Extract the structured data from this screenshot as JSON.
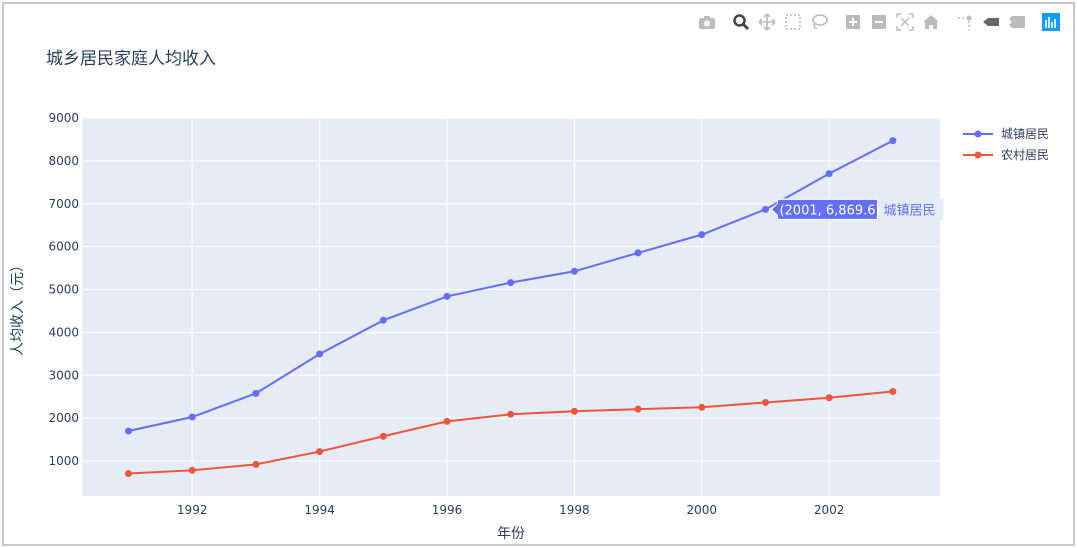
{
  "title": "城乡居民家庭人均收入",
  "modebar": [
    "camera-icon",
    "zoom-icon",
    "pan-icon",
    "box-select-icon",
    "lasso-select-icon",
    "zoom-in-icon",
    "zoom-out-icon",
    "autoscale-icon",
    "reset-axes-icon",
    "spike-lines-icon",
    "hover-closest-icon",
    "hover-compare-icon",
    "plotly-logo-icon"
  ],
  "chart_data": {
    "type": "line",
    "title": "城乡居民家庭人均收入",
    "xlabel": "年份",
    "ylabel": "人均收入（元）",
    "x": [
      1991,
      1992,
      1993,
      1994,
      1995,
      1996,
      1997,
      1998,
      1999,
      2000,
      2001,
      2002,
      2003
    ],
    "xlim": [
      1990.27,
      2003.74
    ],
    "ylim": [
      185,
      9000
    ],
    "xticks": [
      1992,
      1994,
      1996,
      1998,
      2000,
      2002
    ],
    "yticks": [
      1000,
      2000,
      3000,
      4000,
      5000,
      6000,
      7000,
      8000,
      9000
    ],
    "grid": true,
    "legend_position": "top-right",
    "series": [
      {
        "name": "城镇居民",
        "color": "#636efa",
        "values": [
          1700.6,
          2026.6,
          2577.4,
          3496.2,
          4283,
          4838.9,
          5160.3,
          5425.1,
          5854,
          6280,
          6869.6,
          7702.8,
          8472.2
        ]
      },
      {
        "name": "农村居民",
        "color": "#ef553b",
        "values": [
          708.6,
          784,
          921.6,
          1221,
          1577.7,
          1926.1,
          2090.1,
          2162,
          2210.3,
          2253.4,
          2366.4,
          2475.6,
          2622.2
        ]
      }
    ],
    "hover": {
      "label": "(2001, 6,869.6)",
      "series": "城镇居民",
      "x": 2001,
      "y": 6869.6
    }
  },
  "colors": {
    "plot_bg": "#e5ecf6",
    "grid": "#ffffff",
    "text": "#2a3f5f",
    "active": "#119dff"
  }
}
